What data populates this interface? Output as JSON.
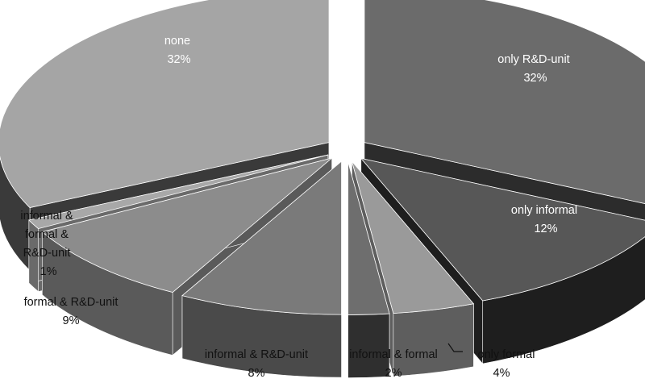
{
  "chart_data": {
    "type": "pie",
    "title": "",
    "style": "3d-exploded",
    "slices": [
      {
        "label": "only R&D-unit",
        "percent": "32%",
        "value": 32,
        "top_color": "#6b6b6b",
        "side_color": "#2c2c2c",
        "text_color": "#ffffff"
      },
      {
        "label": "only informal",
        "percent": "12%",
        "value": 12,
        "top_color": "#575757",
        "side_color": "#1e1e1e",
        "text_color": "#ffffff"
      },
      {
        "label": "only formal",
        "percent": "4%",
        "value": 4,
        "top_color": "#9a9a9a",
        "side_color": "#5e5e5e",
        "text_color": "#111111"
      },
      {
        "label": "informal & formal",
        "percent": "2%",
        "value": 2,
        "top_color": "#6e6e6e",
        "side_color": "#2f2f2f",
        "text_color": "#111111"
      },
      {
        "label": "informal & R&D-unit",
        "percent": "8%",
        "value": 8,
        "top_color": "#7a7a7a",
        "side_color": "#4a4a4a",
        "text_color": "#111111"
      },
      {
        "label": "formal & R&D-unit",
        "percent": "9%",
        "value": 9,
        "top_color": "#8c8c8c",
        "side_color": "#5a5a5a",
        "text_color": "#111111"
      },
      {
        "label": "informal & formal & R&D-unit",
        "percent": "1%",
        "value": 1,
        "top_color": "#a8a8a8",
        "side_color": "#6a6a6a",
        "text_color": "#111111"
      },
      {
        "label": "none",
        "percent": "32%",
        "value": 32,
        "top_color": "#a5a5a5",
        "side_color": "#3a3a3a",
        "text_color": "#ffffff"
      }
    ]
  }
}
